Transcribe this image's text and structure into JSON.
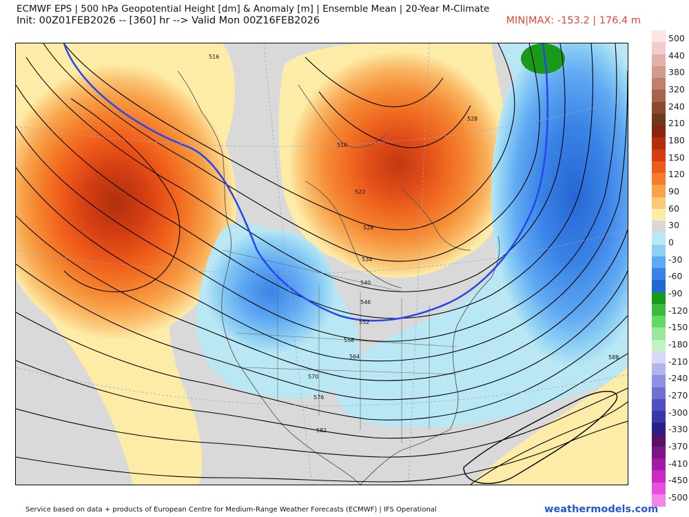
{
  "header": {
    "title_line1": "ECMWF EPS | 500 hPa Geopotential Height [dm] & Anomaly [m] | Ensemble Mean | 20-Year M-Climate",
    "title_line2": "Init: 00Z01FEB2026 -- [360] hr --> Valid Mon 00Z16FEB2026",
    "minmax": "MIN|MAX: -153.2 | 176.4 m"
  },
  "colorbar": {
    "labels": [
      "500",
      "440",
      "380",
      "320",
      "240",
      "210",
      "180",
      "150",
      "120",
      "90",
      "60",
      "30",
      "0",
      "-30",
      "-60",
      "-90",
      "-120",
      "-150",
      "-180",
      "-210",
      "-240",
      "-270",
      "-300",
      "-330",
      "-370",
      "-410",
      "-450",
      "-500"
    ],
    "colors": [
      "#fde4e4",
      "#f0cccc",
      "#e2b1aa",
      "#d3998f",
      "#c0806e",
      "#a8644a",
      "#8a4a2c",
      "#6e3a1f",
      "#8a2510",
      "#b0300e",
      "#d43e12",
      "#ef5b1a",
      "#f47d2a",
      "#f8a24a",
      "#fbc778",
      "#fdeca7",
      "#d8d8d8",
      "#b9e7f3",
      "#8ed0f5",
      "#5fa8f2",
      "#3a83e6",
      "#2566d4",
      "#1a9a1a",
      "#3cbc3c",
      "#66d866",
      "#9ae89a",
      "#c2f2c2",
      "#d9d9f7",
      "#b5b5ee",
      "#9090e2",
      "#6f6fd6",
      "#5050c4",
      "#3838a8",
      "#2a1f84",
      "#5a1064",
      "#7c1484",
      "#a21aa6",
      "#cc28c6",
      "#e850dc",
      "#f086e8"
    ]
  },
  "contours": {
    "labels": [
      "516",
      "516",
      "522",
      "528",
      "528",
      "534",
      "540",
      "546",
      "552",
      "558",
      "564",
      "570",
      "576",
      "582",
      "588"
    ]
  },
  "footer": {
    "text": "Service based on data + products of European Centre for Medium-Range Weather Forecasts (ECMWF) | IFS Operational",
    "brand": "weathermodels.com"
  }
}
